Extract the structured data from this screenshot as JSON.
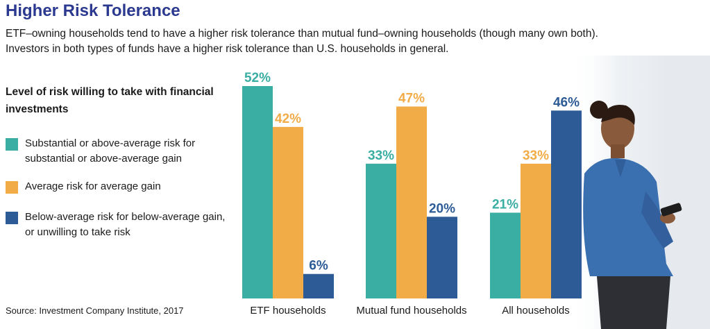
{
  "title": "Higher Risk Tolerance",
  "subtitle": "ETF–owning households tend to have a higher risk tolerance than mutual fund–owning households (though many own both). Investors in both types of funds have a higher risk tolerance than U.S. households in general.",
  "legend_title": "Level of risk willing to take with financial investments",
  "source": "Source: Investment Company Institute, 2017",
  "colors": {
    "teal": "#3aaea3",
    "orange": "#f2ac47",
    "blue": "#2c5b96",
    "title": "#2b3990"
  },
  "chart_data": {
    "type": "bar",
    "categories": [
      "ETF households",
      "Mutual fund households",
      "All households"
    ],
    "series": [
      {
        "name": "Substantial or above-average risk for substantial or above-average gain",
        "values": [
          52,
          33,
          21
        ],
        "labels": [
          "52%",
          "33%",
          "21%"
        ],
        "color": "#3aaea3"
      },
      {
        "name": "Average risk for average gain",
        "values": [
          42,
          47,
          33
        ],
        "labels": [
          "42%",
          "47%",
          "33%"
        ],
        "color": "#f2ac47"
      },
      {
        "name": "Below-average risk for below-average gain, or unwilling to take risk",
        "values": [
          6,
          20,
          46
        ],
        "labels": [
          "6%",
          "20%",
          "46%"
        ],
        "color": "#2c5b96"
      }
    ],
    "ylim": [
      0,
      52
    ],
    "grid": false,
    "legend": "left"
  }
}
